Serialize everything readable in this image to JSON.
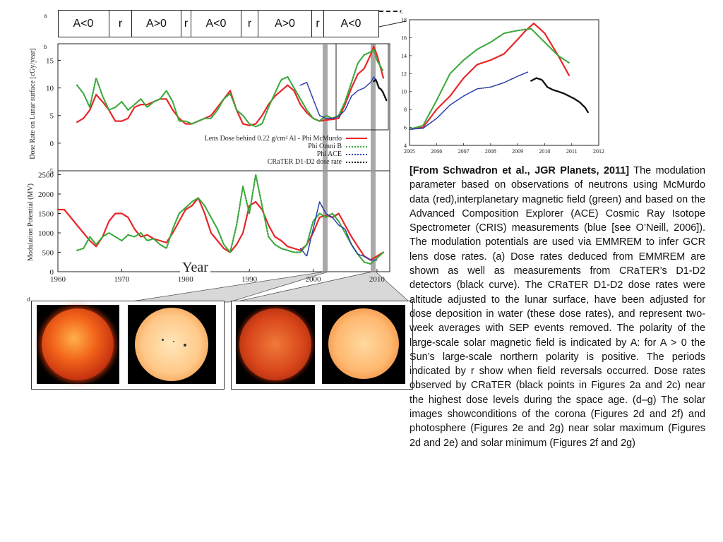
{
  "figure": {
    "panel_tags": {
      "a": "a",
      "b": "b",
      "c": "c",
      "d": "d",
      "e": "e",
      "f": "f",
      "g": "g"
    },
    "polarity_bar": [
      "A<0",
      "r",
      "A>0",
      "r",
      "A<0",
      "r",
      "A>0",
      "r",
      "A<0"
    ],
    "legend": [
      {
        "label": "Lens Dose behind 0.22 g/cm² Al - Phi McMurdo",
        "color": "#e8262a",
        "style": "solid"
      },
      {
        "label": "Phi  Omni B",
        "color": "#3aa83a",
        "style": "dotted"
      },
      {
        "label": "Phi ACE",
        "color": "#2a3ea8",
        "style": "dotted"
      },
      {
        "label": "CRaTER D1-D2 dose rate",
        "color": "#111111",
        "style": "dotted"
      }
    ],
    "year_label": "Year",
    "dose_ylabel": "Dose Rate on Lunar surface [cGy/year]",
    "mod_ylabel": "Modulation Potential (MV)"
  },
  "chart_data": [
    {
      "type": "line",
      "panel": "b",
      "ylabel": "Dose Rate on Lunar surface [cGy/year]",
      "xlim": [
        1960,
        2012
      ],
      "ylim": [
        -5,
        18
      ],
      "yticks": [
        -5,
        0,
        5,
        10,
        15
      ],
      "series": [
        {
          "name": "Lens Dose behind 0.22 g/cm² Al - Phi McMurdo",
          "color": "#e8262a",
          "x": [
            1963,
            1964,
            1965,
            1966,
            1967,
            1968,
            1969,
            1970,
            1971,
            1972,
            1973,
            1974,
            1975,
            1976,
            1977,
            1978,
            1979,
            1980,
            1981,
            1982,
            1983,
            1984,
            1985,
            1986,
            1987,
            1988,
            1989,
            1990,
            1991,
            1992,
            1993,
            1994,
            1995,
            1996,
            1997,
            1998,
            1999,
            2000,
            2001,
            2002,
            2003,
            2004,
            2005,
            2006,
            2007,
            2008,
            2009,
            2009.5,
            2010,
            2011
          ],
          "y": [
            3.8,
            4.5,
            6,
            8.8,
            7.5,
            6,
            4,
            4,
            4.5,
            6.5,
            7,
            7,
            7.5,
            8,
            8,
            6,
            4.5,
            3.5,
            3.5,
            4,
            4.5,
            5,
            6.5,
            8,
            9.5,
            6,
            3.5,
            3.2,
            3.5,
            5,
            7,
            8.5,
            9.5,
            10.5,
            9.5,
            7,
            5.5,
            4.5,
            4,
            4.2,
            4.3,
            4.5,
            7,
            10,
            12.5,
            13.5,
            16,
            17.5,
            16,
            11.8
          ]
        },
        {
          "name": "Phi  Omni B",
          "color": "#3aa83a",
          "x": [
            1963,
            1964,
            1965,
            1966,
            1967,
            1968,
            1969,
            1970,
            1971,
            1972,
            1973,
            1974,
            1975,
            1976,
            1977,
            1978,
            1979,
            1980,
            1981,
            1982,
            1983,
            1984,
            1985,
            1986,
            1987,
            1988,
            1989,
            1990,
            1991,
            1992,
            1993,
            1994,
            1995,
            1996,
            1997,
            1998,
            1999,
            2000,
            2001,
            2002,
            2003,
            2004,
            2005,
            2006,
            2007,
            2008,
            2009,
            2009.5,
            2010,
            2011
          ],
          "y": [
            10.5,
            9,
            6.5,
            11.8,
            8.5,
            6,
            6.5,
            7.5,
            6,
            7,
            8,
            6.5,
            7.5,
            8,
            9.5,
            7.5,
            4,
            4,
            3.5,
            4,
            4.5,
            4.5,
            6,
            8,
            9,
            6,
            5,
            3.5,
            3,
            3.5,
            6.5,
            9,
            11.5,
            12,
            10,
            8,
            6,
            4.5,
            4,
            5,
            4.5,
            5,
            7.5,
            11,
            14.5,
            16,
            16.5,
            17,
            15,
            13
          ]
        },
        {
          "name": "Phi ACE",
          "color": "#2a3ea8",
          "x": [
            1998,
            1999,
            2000,
            2001,
            2002,
            2003,
            2004,
            2005,
            2006,
            2007,
            2008,
            2009,
            2009.5,
            2010
          ],
          "y": [
            10.5,
            11,
            8,
            5,
            4.5,
            4.5,
            4.8,
            6,
            8.5,
            9.5,
            10,
            11,
            12,
            11
          ]
        },
        {
          "name": "CRaTER D1-D2 dose rate",
          "color": "#111111",
          "x": [
            2009.5,
            2009.8,
            2010,
            2010.3,
            2010.6,
            2010.9,
            2011.2,
            2011.5
          ],
          "y": [
            11.2,
            11.5,
            11,
            10,
            9.8,
            9.3,
            8.5,
            7.7
          ]
        }
      ]
    },
    {
      "type": "line",
      "panel": "b-lower",
      "xlabel": "Year",
      "ylabel": "Modulation Potential (MV)",
      "xlim": [
        1960,
        2012
      ],
      "xticks": [
        1960,
        1970,
        1980,
        1990,
        2000,
        2010
      ],
      "ylim": [
        0,
        2600
      ],
      "yticks": [
        0,
        500,
        1000,
        1500,
        2000,
        2500
      ],
      "series": [
        {
          "name": "Phi McMurdo",
          "color": "#e8262a",
          "x": [
            1960,
            1961,
            1962,
            1963,
            1964,
            1965,
            1966,
            1967,
            1968,
            1969,
            1970,
            1971,
            1972,
            1973,
            1974,
            1975,
            1976,
            1977,
            1978,
            1979,
            1980,
            1981,
            1982,
            1983,
            1984,
            1985,
            1986,
            1987,
            1988,
            1989,
            1990,
            1991,
            1992,
            1993,
            1994,
            1995,
            1996,
            1997,
            1998,
            1999,
            2000,
            2001,
            2002,
            2003,
            2004,
            2005,
            2006,
            2007,
            2008,
            2009,
            2010,
            2011
          ],
          "y": [
            1600,
            1600,
            1400,
            1200,
            1000,
            800,
            650,
            900,
            1300,
            1500,
            1500,
            1400,
            1100,
            900,
            950,
            850,
            800,
            750,
            1000,
            1300,
            1600,
            1700,
            1900,
            1500,
            1000,
            800,
            600,
            500,
            700,
            1000,
            1700,
            1800,
            1600,
            1200,
            900,
            800,
            650,
            600,
            550,
            700,
            1000,
            1400,
            1450,
            1400,
            1500,
            1200,
            900,
            650,
            400,
            300,
            400,
            500
          ]
        },
        {
          "name": "Phi  Omni B",
          "color": "#3aa83a",
          "x": [
            1963,
            1964,
            1965,
            1966,
            1967,
            1968,
            1969,
            1970,
            1971,
            1972,
            1973,
            1974,
            1975,
            1976,
            1977,
            1978,
            1979,
            1980,
            1981,
            1982,
            1983,
            1984,
            1985,
            1986,
            1987,
            1988,
            1989,
            1990,
            1991,
            1992,
            1993,
            1994,
            1995,
            1996,
            1997,
            1998,
            1999,
            2000,
            2001,
            2002,
            2003,
            2004,
            2005,
            2006,
            2007,
            2008,
            2009,
            2010,
            2011
          ],
          "y": [
            550,
            600,
            900,
            700,
            900,
            1000,
            900,
            800,
            950,
            900,
            1000,
            800,
            850,
            700,
            600,
            1100,
            1500,
            1650,
            1800,
            1900,
            1700,
            1400,
            1100,
            700,
            500,
            1200,
            2200,
            1500,
            2500,
            1700,
            900,
            700,
            600,
            550,
            500,
            500,
            700,
            1300,
            1500,
            1400,
            1500,
            1300,
            1000,
            700,
            450,
            250,
            200,
            350,
            500
          ]
        },
        {
          "name": "Phi ACE",
          "color": "#2a3ea8",
          "x": [
            1998,
            1999,
            2000,
            2001,
            2002,
            2003,
            2004,
            2005,
            2006,
            2007,
            2008,
            2009,
            2010
          ],
          "y": [
            600,
            400,
            1100,
            1800,
            1500,
            1400,
            1200,
            1100,
            700,
            450,
            400,
            300,
            300
          ]
        }
      ]
    },
    {
      "type": "line",
      "panel": "c",
      "xlim": [
        2005,
        2012
      ],
      "xticks": [
        2005,
        2006,
        2007,
        2008,
        2009,
        2010,
        2011,
        2012
      ],
      "ylim": [
        4,
        18
      ],
      "yticks": [
        4,
        6,
        8,
        10,
        12,
        14,
        16,
        18
      ],
      "series": [
        {
          "name": "Phi McMurdo",
          "color": "#e8262a",
          "x": [
            2005,
            2005.5,
            2006,
            2006.5,
            2007,
            2007.5,
            2008,
            2008.5,
            2009,
            2009.3,
            2009.6,
            2010,
            2010.5,
            2010.9
          ],
          "y": [
            5.8,
            6,
            8,
            9.5,
            11.5,
            13,
            13.5,
            14.2,
            15.8,
            16.8,
            17.6,
            16.5,
            14,
            11.8
          ]
        },
        {
          "name": "Phi  Omni B",
          "color": "#3aa83a",
          "x": [
            2005,
            2005.5,
            2006,
            2006.5,
            2007,
            2007.5,
            2008,
            2008.5,
            2009,
            2009.5,
            2010,
            2010.5,
            2010.9
          ],
          "y": [
            5.8,
            6.2,
            9,
            12,
            13.5,
            14.7,
            15.5,
            16.5,
            16.8,
            17,
            15.5,
            14,
            13.2
          ]
        },
        {
          "name": "Phi ACE",
          "color": "#2a3ea8",
          "x": [
            2005,
            2005.5,
            2006,
            2006.5,
            2007,
            2007.5,
            2008,
            2008.5,
            2009,
            2009.4
          ],
          "y": [
            5.8,
            5.9,
            7,
            8.5,
            9.5,
            10.3,
            10.5,
            11,
            11.7,
            12.2
          ]
        },
        {
          "name": "CRaTER D1-D2 dose rate",
          "color": "#111111",
          "x": [
            2009.5,
            2009.7,
            2009.9,
            2010.1,
            2010.3,
            2010.5,
            2010.7,
            2010.9,
            2011.1,
            2011.3,
            2011.5,
            2011.6
          ],
          "y": [
            11.2,
            11.5,
            11.3,
            10.5,
            10.2,
            10,
            9.8,
            9.5,
            9.2,
            8.8,
            8.2,
            7.7
          ]
        }
      ]
    }
  ],
  "caption": {
    "citation": "[From Schwadron et al., JGR Planets, 2011]",
    "body": " The modulation parameter based on observations of neutrons using McMurdo data (red),interplanetary magnetic field (green) and based on the Advanced Composition Explorer (ACE) Cosmic Ray Isotope Spectrometer (CRIS) measurements (blue [see O’Neill, 2006]). The modulation potentials are used via EMMREM to infer GCR lens dose rates. (a) Dose rates deduced from EMMREM are shown as well as measurements from CRaTER’s D1-D2 detectors (black curve). The CRaTER D1-D2 dose rates were altitude adjusted to the lunar surface, have been adjusted for dose deposition in water (these dose rates), and represent two-week averages with SEP events removed. The polarity of the large-scale solar magnetic field is indicated by A: for A > 0 the Sun’s large-scale northern polarity is positive. The periods indicated by r show when field reversals occurred. Dose rates observed by CRaTER (black points in Figures 2a and 2c) near the highest dose levels during the space age. (d–g) The solar images showconditions of the corona (Figures 2d and 2f) and photosphere (Figures 2e and 2g) near solar maximum (Figures 2d and 2e) and solar minimum (Figures 2f and 2g)"
  }
}
